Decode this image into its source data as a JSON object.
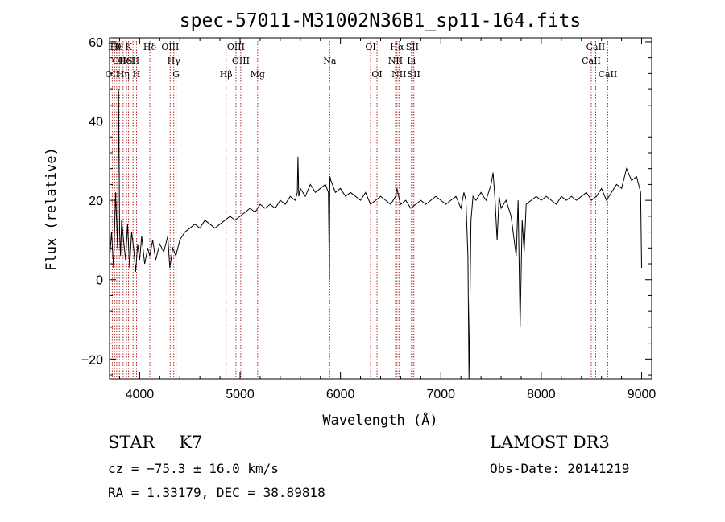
{
  "chart_data": {
    "type": "line",
    "title": "spec-57011-M31002N36B1_sp11-164.fits",
    "xlabel": "Wavelength (Å)",
    "ylabel": "Flux (relative)",
    "xlim": [
      3700,
      9100
    ],
    "ylim": [
      -25,
      61
    ],
    "xticks": [
      4000,
      5000,
      6000,
      7000,
      8000,
      9000
    ],
    "yticks": [
      -20,
      0,
      20,
      40,
      60
    ],
    "grid": false,
    "series": [
      {
        "x": [
          3700,
          3720,
          3740,
          3760,
          3780,
          3790,
          3800,
          3810,
          3820,
          3840,
          3860,
          3880,
          3900,
          3920,
          3940,
          3960,
          3980,
          4000,
          4020,
          4050,
          4080,
          4100,
          4130,
          4160,
          4200,
          4240,
          4280,
          4300,
          4330,
          4360,
          4400,
          4450,
          4500,
          4550,
          4600,
          4650,
          4700,
          4750,
          4800,
          4850,
          4900,
          4950,
          5000,
          5050,
          5100,
          5150,
          5200,
          5250,
          5300,
          5350,
          5400,
          5450,
          5500,
          5550,
          5570,
          5577,
          5585,
          5600,
          5650,
          5700,
          5750,
          5800,
          5850,
          5880,
          5890,
          5893,
          5896,
          5905,
          5920,
          5950,
          6000,
          6050,
          6100,
          6150,
          6200,
          6250,
          6300,
          6350,
          6400,
          6450,
          6500,
          6550,
          6563,
          6580,
          6600,
          6650,
          6700,
          6750,
          6800,
          6850,
          6900,
          6950,
          7000,
          7050,
          7100,
          7150,
          7200,
          7230,
          7250,
          7270,
          7280,
          7300,
          7320,
          7350,
          7400,
          7450,
          7500,
          7520,
          7540,
          7560,
          7580,
          7600,
          7650,
          7700,
          7750,
          7770,
          7790,
          7810,
          7830,
          7850,
          7900,
          7950,
          8000,
          8050,
          8100,
          8150,
          8200,
          8250,
          8300,
          8350,
          8400,
          8450,
          8500,
          8550,
          8600,
          8650,
          8700,
          8750,
          8800,
          8850,
          8900,
          8950,
          8990,
          9000
        ],
        "y": [
          5,
          12,
          3,
          22,
          8,
          48,
          12,
          6,
          15,
          10,
          5,
          14,
          3,
          12,
          8,
          2,
          9,
          5,
          11,
          4,
          8,
          6,
          10,
          5,
          9,
          7,
          11,
          3,
          8,
          6,
          10,
          12,
          13,
          14,
          13,
          15,
          14,
          13,
          14,
          15,
          16,
          15,
          16,
          17,
          18,
          17,
          19,
          18,
          19,
          18,
          20,
          19,
          21,
          20,
          22,
          31,
          21,
          23,
          21,
          24,
          22,
          23,
          24,
          22,
          0,
          22,
          26,
          25,
          24,
          22,
          23,
          21,
          22,
          21,
          20,
          22,
          19,
          20,
          21,
          20,
          19,
          21,
          23,
          21,
          19,
          20,
          18,
          19,
          20,
          19,
          20,
          21,
          20,
          19,
          20,
          21,
          18,
          22,
          20,
          6,
          -25,
          15,
          21,
          20,
          22,
          20,
          24,
          27,
          20,
          10,
          21,
          18,
          20,
          16,
          6,
          20,
          -12,
          15,
          7,
          19,
          20,
          21,
          20,
          21,
          20,
          19,
          21,
          20,
          21,
          20,
          21,
          22,
          20,
          21,
          23,
          20,
          22,
          24,
          23,
          28,
          25,
          26,
          22,
          3
        ]
      }
    ],
    "lines": [
      {
        "x": 3727,
        "labels": [
          "OII"
        ],
        "row": 3
      },
      {
        "x": 3750,
        "labels": [
          "Hθ"
        ],
        "row": 1
      },
      {
        "x": 3771,
        "labels": [
          "Hθ"
        ],
        "row": 1
      },
      {
        "x": 3798,
        "labels": [
          "OII"
        ],
        "row": 2
      },
      {
        "x": 3835,
        "labels": [
          "Hη"
        ],
        "row": 3
      },
      {
        "x": 3869,
        "labels": [
          "HeI"
        ],
        "row": 2
      },
      {
        "x": 3889,
        "labels": [
          "K"
        ],
        "row": 1
      },
      {
        "x": 3934,
        "labels": [
          "SII"
        ],
        "row": 2
      },
      {
        "x": 3969,
        "labels": [
          "H"
        ],
        "row": 3
      },
      {
        "x": 4101,
        "labels": [
          "Hδ"
        ],
        "row": 1
      },
      {
        "x": 4304,
        "labels": [
          "OIII"
        ],
        "row": 1
      },
      {
        "x": 4340,
        "labels": [
          "Hγ"
        ],
        "row": 2
      },
      {
        "x": 4363,
        "labels": [
          "G"
        ],
        "row": 3
      },
      {
        "x": 4861,
        "labels": [
          "Hβ"
        ],
        "row": 3
      },
      {
        "x": 4959,
        "labels": [
          "OIII"
        ],
        "row": 1
      },
      {
        "x": 5007,
        "labels": [
          "OIII"
        ],
        "row": 2
      },
      {
        "x": 5175,
        "labels": [
          "Mg"
        ],
        "row": 3
      },
      {
        "x": 5893,
        "labels": [
          "Na"
        ],
        "row": 2
      },
      {
        "x": 6300,
        "labels": [
          "OI"
        ],
        "row": 1
      },
      {
        "x": 6364,
        "labels": [
          "OI"
        ],
        "row": 3
      },
      {
        "x": 6548,
        "labels": [
          "NII"
        ],
        "row": 2
      },
      {
        "x": 6563,
        "labels": [
          "Hα"
        ],
        "row": 1
      },
      {
        "x": 6583,
        "labels": [
          "NII"
        ],
        "row": 3
      },
      {
        "x": 6707,
        "labels": [
          "Li"
        ],
        "row": 2
      },
      {
        "x": 6716,
        "labels": [
          "SII"
        ],
        "row": 1
      },
      {
        "x": 6731,
        "labels": [
          "SII"
        ],
        "row": 3
      },
      {
        "x": 8498,
        "labels": [
          "CaII"
        ],
        "row": 2
      },
      {
        "x": 8542,
        "labels": [
          "CaII"
        ],
        "row": 1
      },
      {
        "x": 8662,
        "labels": [
          "CaII"
        ],
        "row": 3
      }
    ]
  },
  "info": {
    "class": "STAR",
    "subclass": "K7",
    "survey": "LAMOST DR3",
    "cz": "cz = −75.3 ± 16.0 km/s",
    "obs_date": "Obs-Date: 20141219",
    "radec": "RA =   1.33179, DEC =  38.89818"
  }
}
